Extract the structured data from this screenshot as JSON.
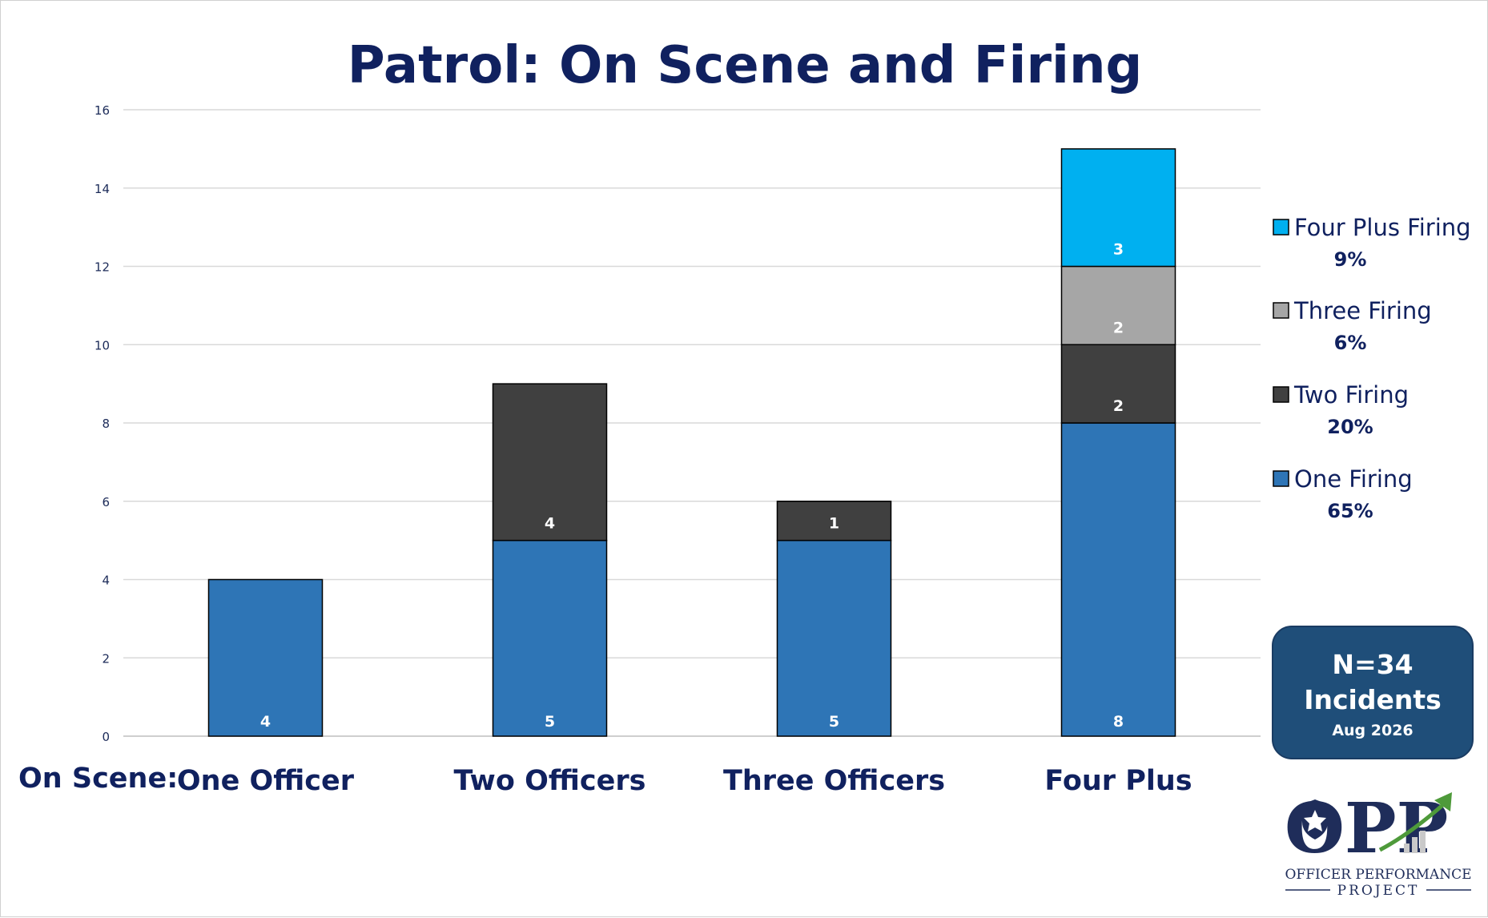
{
  "chart_data": {
    "type": "bar",
    "stacked": true,
    "title": "Patrol: On Scene and Firing",
    "category_axis_label": "On Scene:",
    "categories": [
      "One Officer",
      "Two Officers",
      "Three Officers",
      "Four Plus"
    ],
    "series": [
      {
        "name": "One Firing",
        "percent": "65%",
        "color": "#2e75b6",
        "values": [
          4,
          5,
          5,
          8
        ],
        "labels": [
          "4",
          "5",
          "5",
          "8"
        ]
      },
      {
        "name": "Two Firing",
        "percent": "20%",
        "color": "#404040",
        "values": [
          0,
          4,
          1,
          2
        ],
        "labels": [
          "",
          "4",
          "1",
          "2"
        ]
      },
      {
        "name": "Three Firing",
        "percent": "6%",
        "color": "#a6a6a6",
        "values": [
          0,
          0,
          0,
          2
        ],
        "labels": [
          "",
          "",
          "",
          "2"
        ]
      },
      {
        "name": "Four Plus Firing",
        "percent": "9%",
        "color": "#00b0f0",
        "values": [
          0,
          0,
          0,
          3
        ],
        "labels": [
          "",
          "",
          "",
          "3"
        ]
      }
    ],
    "ylim": [
      0,
      16
    ],
    "yticks": [
      "0",
      "2",
      "4",
      "6",
      "8",
      "10",
      "12",
      "14",
      "16"
    ],
    "grid": true,
    "legend_position": "right",
    "legend_order": [
      "Four Plus Firing",
      "Three Firing",
      "Two Firing",
      "One Firing"
    ]
  },
  "summary_box": {
    "line1": "N=34",
    "line2": "Incidents",
    "line3": "Aug 2026",
    "color": "#1f4e79"
  },
  "logo": {
    "letters": "OPP",
    "line1": "OFFICER PERFORMANCE",
    "line2": "PROJECT"
  }
}
